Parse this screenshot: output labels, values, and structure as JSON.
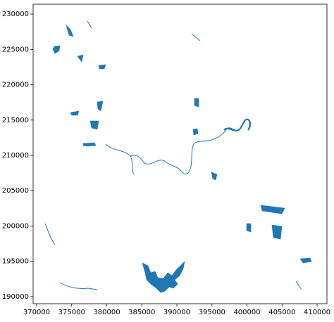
{
  "chart_data": {
    "type": "map",
    "color": "#1f77b4",
    "xlim": [
      369500,
      411400
    ],
    "ylim": [
      189000,
      231400
    ],
    "xticks": [
      370000,
      375000,
      380000,
      385000,
      390000,
      395000,
      400000,
      405000,
      410000
    ],
    "yticks": [
      190000,
      195000,
      200000,
      205000,
      210000,
      215000,
      220000,
      225000,
      230000
    ]
  }
}
